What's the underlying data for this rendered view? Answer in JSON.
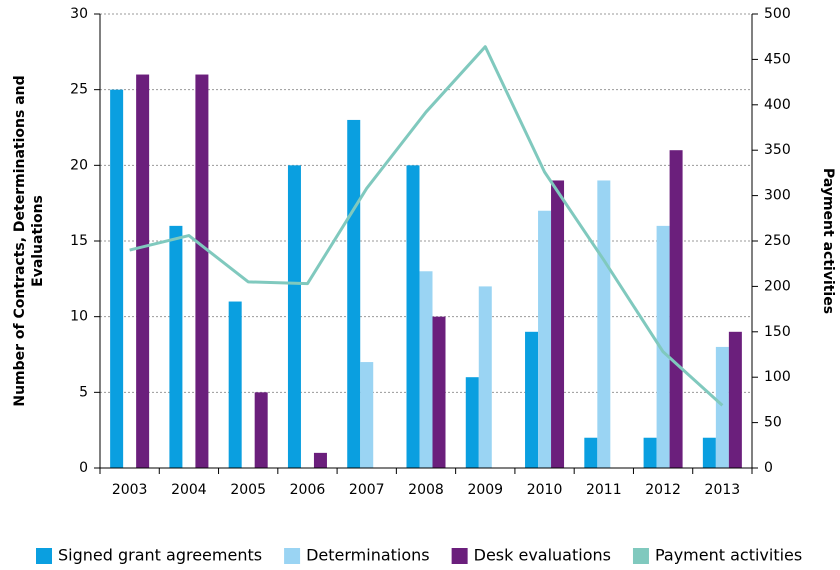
{
  "chart_data": {
    "type": "bar_line",
    "ylabel": [
      "Number of Contracts, Determinations and",
      "Evaluations"
    ],
    "y2label": "Payment activities",
    "categories": [
      "2003",
      "2004",
      "2005",
      "2006",
      "2007",
      "2008",
      "2009",
      "2010",
      "2011",
      "2012",
      "2013"
    ],
    "series": [
      {
        "name": "Signed grant agreements",
        "color": "#0a9fe0",
        "type": "bar",
        "values": [
          25,
          16,
          11,
          20,
          23,
          20,
          6,
          9,
          2,
          2,
          2
        ]
      },
      {
        "name": "Determinations",
        "color": "#9ad4f3",
        "type": "bar",
        "values": [
          0,
          0,
          0,
          0,
          7,
          13,
          12,
          17,
          19,
          16,
          8
        ]
      },
      {
        "name": "Desk evaluations",
        "color": "#6b1f7c",
        "type": "bar",
        "values": [
          26,
          26,
          5,
          1,
          0,
          10,
          0,
          19,
          0,
          21,
          9
        ]
      },
      {
        "name": "Payment activities",
        "color": "#80c9be",
        "type": "line",
        "axis": "y2",
        "values": [
          240,
          256,
          205,
          203,
          308,
          392,
          464,
          326,
          229,
          128,
          69
        ]
      }
    ],
    "ylim": [
      0,
      30
    ],
    "yticks": [
      0,
      5,
      10,
      15,
      20,
      25,
      30
    ],
    "y2lim": [
      0,
      500
    ],
    "y2ticks": [
      0,
      50,
      100,
      150,
      200,
      250,
      300,
      350,
      400,
      450,
      500
    ],
    "grid": true,
    "legend": "bottom"
  }
}
